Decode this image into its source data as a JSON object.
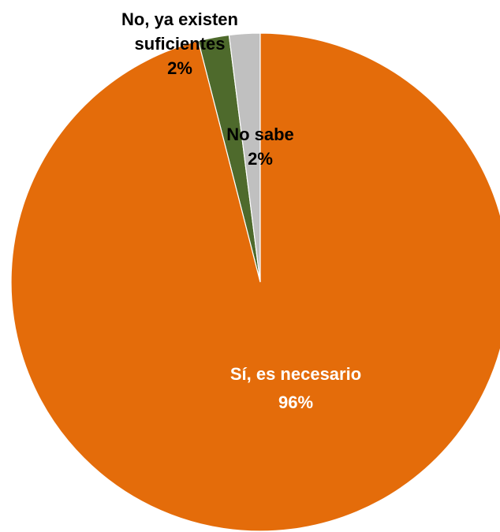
{
  "chart_data": {
    "type": "pie",
    "title": "",
    "slices": [
      {
        "label_lines": [
          "No, ya existen",
          "suficientes"
        ],
        "pct_label": "2%",
        "value": 2,
        "color": "#4E6A2C",
        "label_color": "#000000"
      },
      {
        "label_lines": [
          "No sabe"
        ],
        "pct_label": "2%",
        "value": 2,
        "color": "#C0C0C0",
        "label_color": "#000000"
      },
      {
        "label_lines": [
          "Sí, es necesario"
        ],
        "pct_label": "96%",
        "value": 96,
        "color": "#E46C0A",
        "label_color": "#FFFFFF"
      }
    ],
    "legend": "none",
    "data_labels": "on-chart"
  }
}
